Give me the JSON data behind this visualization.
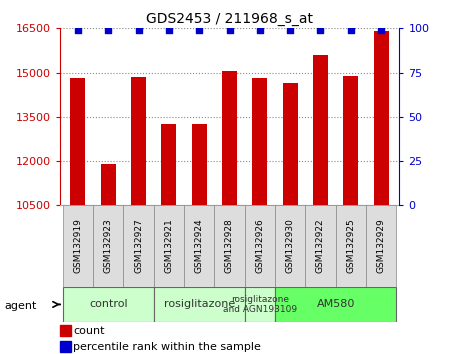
{
  "title": "GDS2453 / 211968_s_at",
  "samples": [
    "GSM132919",
    "GSM132923",
    "GSM132927",
    "GSM132921",
    "GSM132924",
    "GSM132928",
    "GSM132926",
    "GSM132930",
    "GSM132922",
    "GSM132925",
    "GSM132929"
  ],
  "counts": [
    14800,
    11900,
    14850,
    13250,
    13250,
    15050,
    14800,
    14650,
    15600,
    14900,
    16400
  ],
  "percentiles": [
    99,
    99,
    99,
    99,
    99,
    99,
    99,
    99,
    99,
    99,
    99
  ],
  "ylim_left": [
    10500,
    16500
  ],
  "ylim_right": [
    0,
    100
  ],
  "yticks_left": [
    10500,
    12000,
    13500,
    15000,
    16500
  ],
  "yticks_right": [
    0,
    25,
    50,
    75,
    100
  ],
  "bar_color": "#cc0000",
  "dot_color": "#0000cc",
  "groups": [
    {
      "label": "control",
      "start": 0,
      "end": 3,
      "color": "#ccffcc"
    },
    {
      "label": "rosiglitazone",
      "start": 3,
      "end": 6,
      "color": "#ccffcc"
    },
    {
      "label": "rosiglitazone\nand AGN193109",
      "start": 6,
      "end": 7,
      "color": "#ccffcc"
    },
    {
      "label": "AM580",
      "start": 7,
      "end": 11,
      "color": "#66ff66"
    }
  ],
  "bar_color_legend": "#cc0000",
  "dot_color_legend": "#0000cc",
  "bar_width": 0.5,
  "grid_color": "#888888",
  "xticklabel_bg": "#dddddd"
}
